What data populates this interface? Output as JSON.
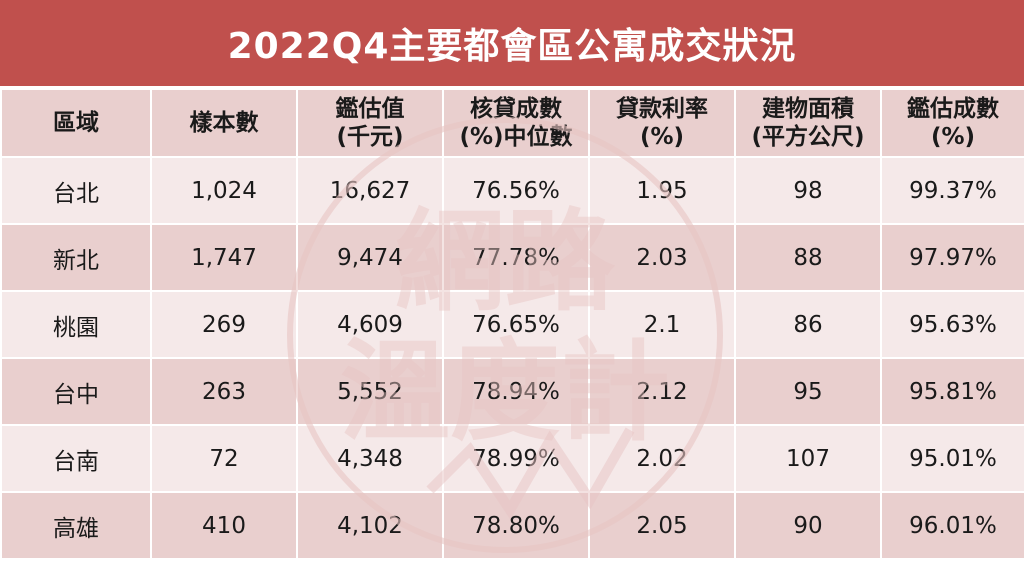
{
  "title": "2022Q4主要都會區公寓成交狀況",
  "headers": [
    {
      "line1": "區域",
      "line2": ""
    },
    {
      "line1": "樣本數",
      "line2": ""
    },
    {
      "line1": "鑑估值",
      "line2": "(千元)"
    },
    {
      "line1": "核貸成數",
      "line2": "(%)中位數"
    },
    {
      "line1": "貸款利率",
      "line2": "(%)"
    },
    {
      "line1": "建物面積",
      "line2": "(平方公尺)"
    },
    {
      "line1": "鑑估成數",
      "line2": "(%)"
    }
  ],
  "rows": [
    {
      "region": "台北",
      "samples": "1,024",
      "appraisal": "16,627",
      "ltv": "76.56%",
      "rate": "1.95",
      "area": "98",
      "appraisal_ratio": "99.37%"
    },
    {
      "region": "新北",
      "samples": "1,747",
      "appraisal": "9,474",
      "ltv": "77.78%",
      "rate": "2.03",
      "area": "88",
      "appraisal_ratio": "97.97%"
    },
    {
      "region": "桃園",
      "samples": "269",
      "appraisal": "4,609",
      "ltv": "76.65%",
      "rate": "2.1",
      "area": "86",
      "appraisal_ratio": "95.63%"
    },
    {
      "region": "台中",
      "samples": "263",
      "appraisal": "5,552",
      "ltv": "78.94%",
      "rate": "2.12",
      "area": "95",
      "appraisal_ratio": "95.81%"
    },
    {
      "region": "台南",
      "samples": "72",
      "appraisal": "4,348",
      "ltv": "78.99%",
      "rate": "2.02",
      "area": "107",
      "appraisal_ratio": "95.01%"
    },
    {
      "region": "高雄",
      "samples": "410",
      "appraisal": "4,102",
      "ltv": "78.80%",
      "rate": "2.05",
      "area": "90",
      "appraisal_ratio": "96.01%"
    }
  ],
  "watermark": {
    "text": "網路溫度計",
    "color": "#e8c4c3"
  },
  "colors": {
    "title_bg": "#c0504d",
    "header_bg": "#e9cfce",
    "row_light": "#f5e9e9",
    "row_dark": "#e9cfce"
  }
}
